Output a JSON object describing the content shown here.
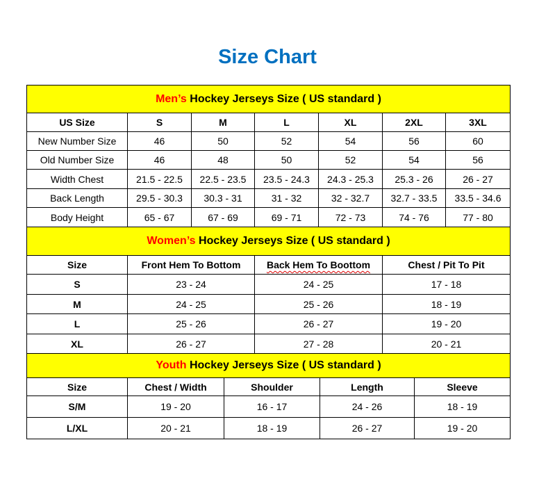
{
  "title": "Size Chart",
  "colors": {
    "title": "#0070C0",
    "section_header_bg": "#FFFF00",
    "section_accent": "#FF0000"
  },
  "men": {
    "heading_accent": "Men’s",
    "heading_rest": " Hockey Jerseys Size ( US standard )",
    "columns": [
      "US Size",
      "S",
      "M",
      "L",
      "XL",
      "2XL",
      "3XL"
    ],
    "rows": [
      [
        "New Number Size",
        "46",
        "50",
        "52",
        "54",
        "56",
        "60"
      ],
      [
        "Old Number Size",
        "46",
        "48",
        "50",
        "52",
        "54",
        "56"
      ],
      [
        "Width Chest",
        "21.5 - 22.5",
        "22.5 - 23.5",
        "23.5 - 24.3",
        "24.3 - 25.3",
        "25.3 - 26",
        "26 - 27"
      ],
      [
        "Back Length",
        "29.5 - 30.3",
        "30.3 - 31",
        "31 - 32",
        "32 - 32.7",
        "32.7 - 33.5",
        "33.5 - 34.6"
      ],
      [
        "Body Height",
        "65 - 67",
        "67 - 69",
        "69 - 71",
        "72 - 73",
        "74 - 76",
        "77 - 80"
      ]
    ]
  },
  "women": {
    "heading_accent": "Women’s",
    "heading_rest": " Hockey Jerseys Size ( US standard )",
    "columns": [
      "Size",
      "Front Hem To Bottom",
      "Back Hem To Boottom",
      "Chest / Pit To Pit"
    ],
    "rows": [
      [
        "S",
        "23 - 24",
        "24 - 25",
        "17 - 18"
      ],
      [
        "M",
        "24 - 25",
        "25 - 26",
        "18 - 19"
      ],
      [
        "L",
        "25 - 26",
        "26 - 27",
        "19 - 20"
      ],
      [
        "XL",
        "26 - 27",
        "27 - 28",
        "20 - 21"
      ]
    ]
  },
  "youth": {
    "heading_accent": "Youth",
    "heading_rest": " Hockey Jerseys Size ( US standard )",
    "columns": [
      "Size",
      "Chest / Width",
      "Shoulder",
      "Length",
      "Sleeve"
    ],
    "rows": [
      [
        "S/M",
        "19 - 20",
        "16 - 17",
        "24 - 26",
        "18 - 19"
      ],
      [
        "L/XL",
        "20 - 21",
        "18 - 19",
        "26 - 27",
        "19 - 20"
      ]
    ]
  }
}
